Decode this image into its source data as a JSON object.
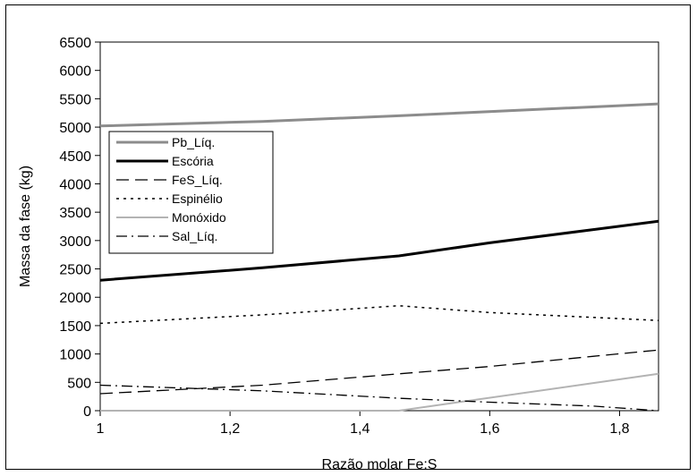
{
  "chart_data": {
    "type": "line",
    "title": "",
    "xlabel": "Razão molar Fe:S",
    "ylabel": "Massa da fase (kg)",
    "xlim": [
      1,
      1.86
    ],
    "ylim": [
      0,
      6500
    ],
    "x_ticks": [
      "1",
      "1,2",
      "1,4",
      "1,6",
      "1,8"
    ],
    "y_ticks": [
      "0",
      "500",
      "1000",
      "1500",
      "2000",
      "2500",
      "3000",
      "3500",
      "4000",
      "4500",
      "5000",
      "5500",
      "6000",
      "6500"
    ],
    "grid": false,
    "legend_position": "left",
    "series": [
      {
        "name": "Pb_Líq.",
        "color": "#8c8c8c",
        "dash": "solid",
        "width": 3,
        "points": [
          [
            1,
            5020
          ],
          [
            1.25,
            5100
          ],
          [
            1.46,
            5200
          ],
          [
            1.86,
            5410
          ]
        ]
      },
      {
        "name": "Escória",
        "color": "#000000",
        "dash": "solid",
        "width": 3,
        "points": [
          [
            1,
            2300
          ],
          [
            1.25,
            2520
          ],
          [
            1.46,
            2730
          ],
          [
            1.6,
            2960
          ],
          [
            1.86,
            3340
          ]
        ]
      },
      {
        "name": "FeS_Líq.",
        "color": "#000000",
        "dash": "longdash",
        "width": 1.3,
        "points": [
          [
            1,
            300
          ],
          [
            1.25,
            450
          ],
          [
            1.46,
            650
          ],
          [
            1.6,
            780
          ],
          [
            1.76,
            960
          ],
          [
            1.86,
            1070
          ]
        ]
      },
      {
        "name": "Espinélio",
        "color": "#000000",
        "dash": "dot",
        "width": 1.5,
        "points": [
          [
            1,
            1540
          ],
          [
            1.25,
            1690
          ],
          [
            1.46,
            1850
          ],
          [
            1.6,
            1730
          ],
          [
            1.86,
            1590
          ]
        ]
      },
      {
        "name": "Monóxido",
        "color": "#b3b3b3",
        "dash": "solid",
        "width": 2,
        "points": [
          [
            1,
            0
          ],
          [
            1.46,
            0
          ],
          [
            1.86,
            650
          ]
        ]
      },
      {
        "name": "Sal_Líq.",
        "color": "#000000",
        "dash": "dashdot",
        "width": 1.3,
        "points": [
          [
            1,
            450
          ],
          [
            1.25,
            350
          ],
          [
            1.46,
            220
          ],
          [
            1.6,
            150
          ],
          [
            1.76,
            80
          ],
          [
            1.86,
            0
          ]
        ]
      }
    ]
  }
}
